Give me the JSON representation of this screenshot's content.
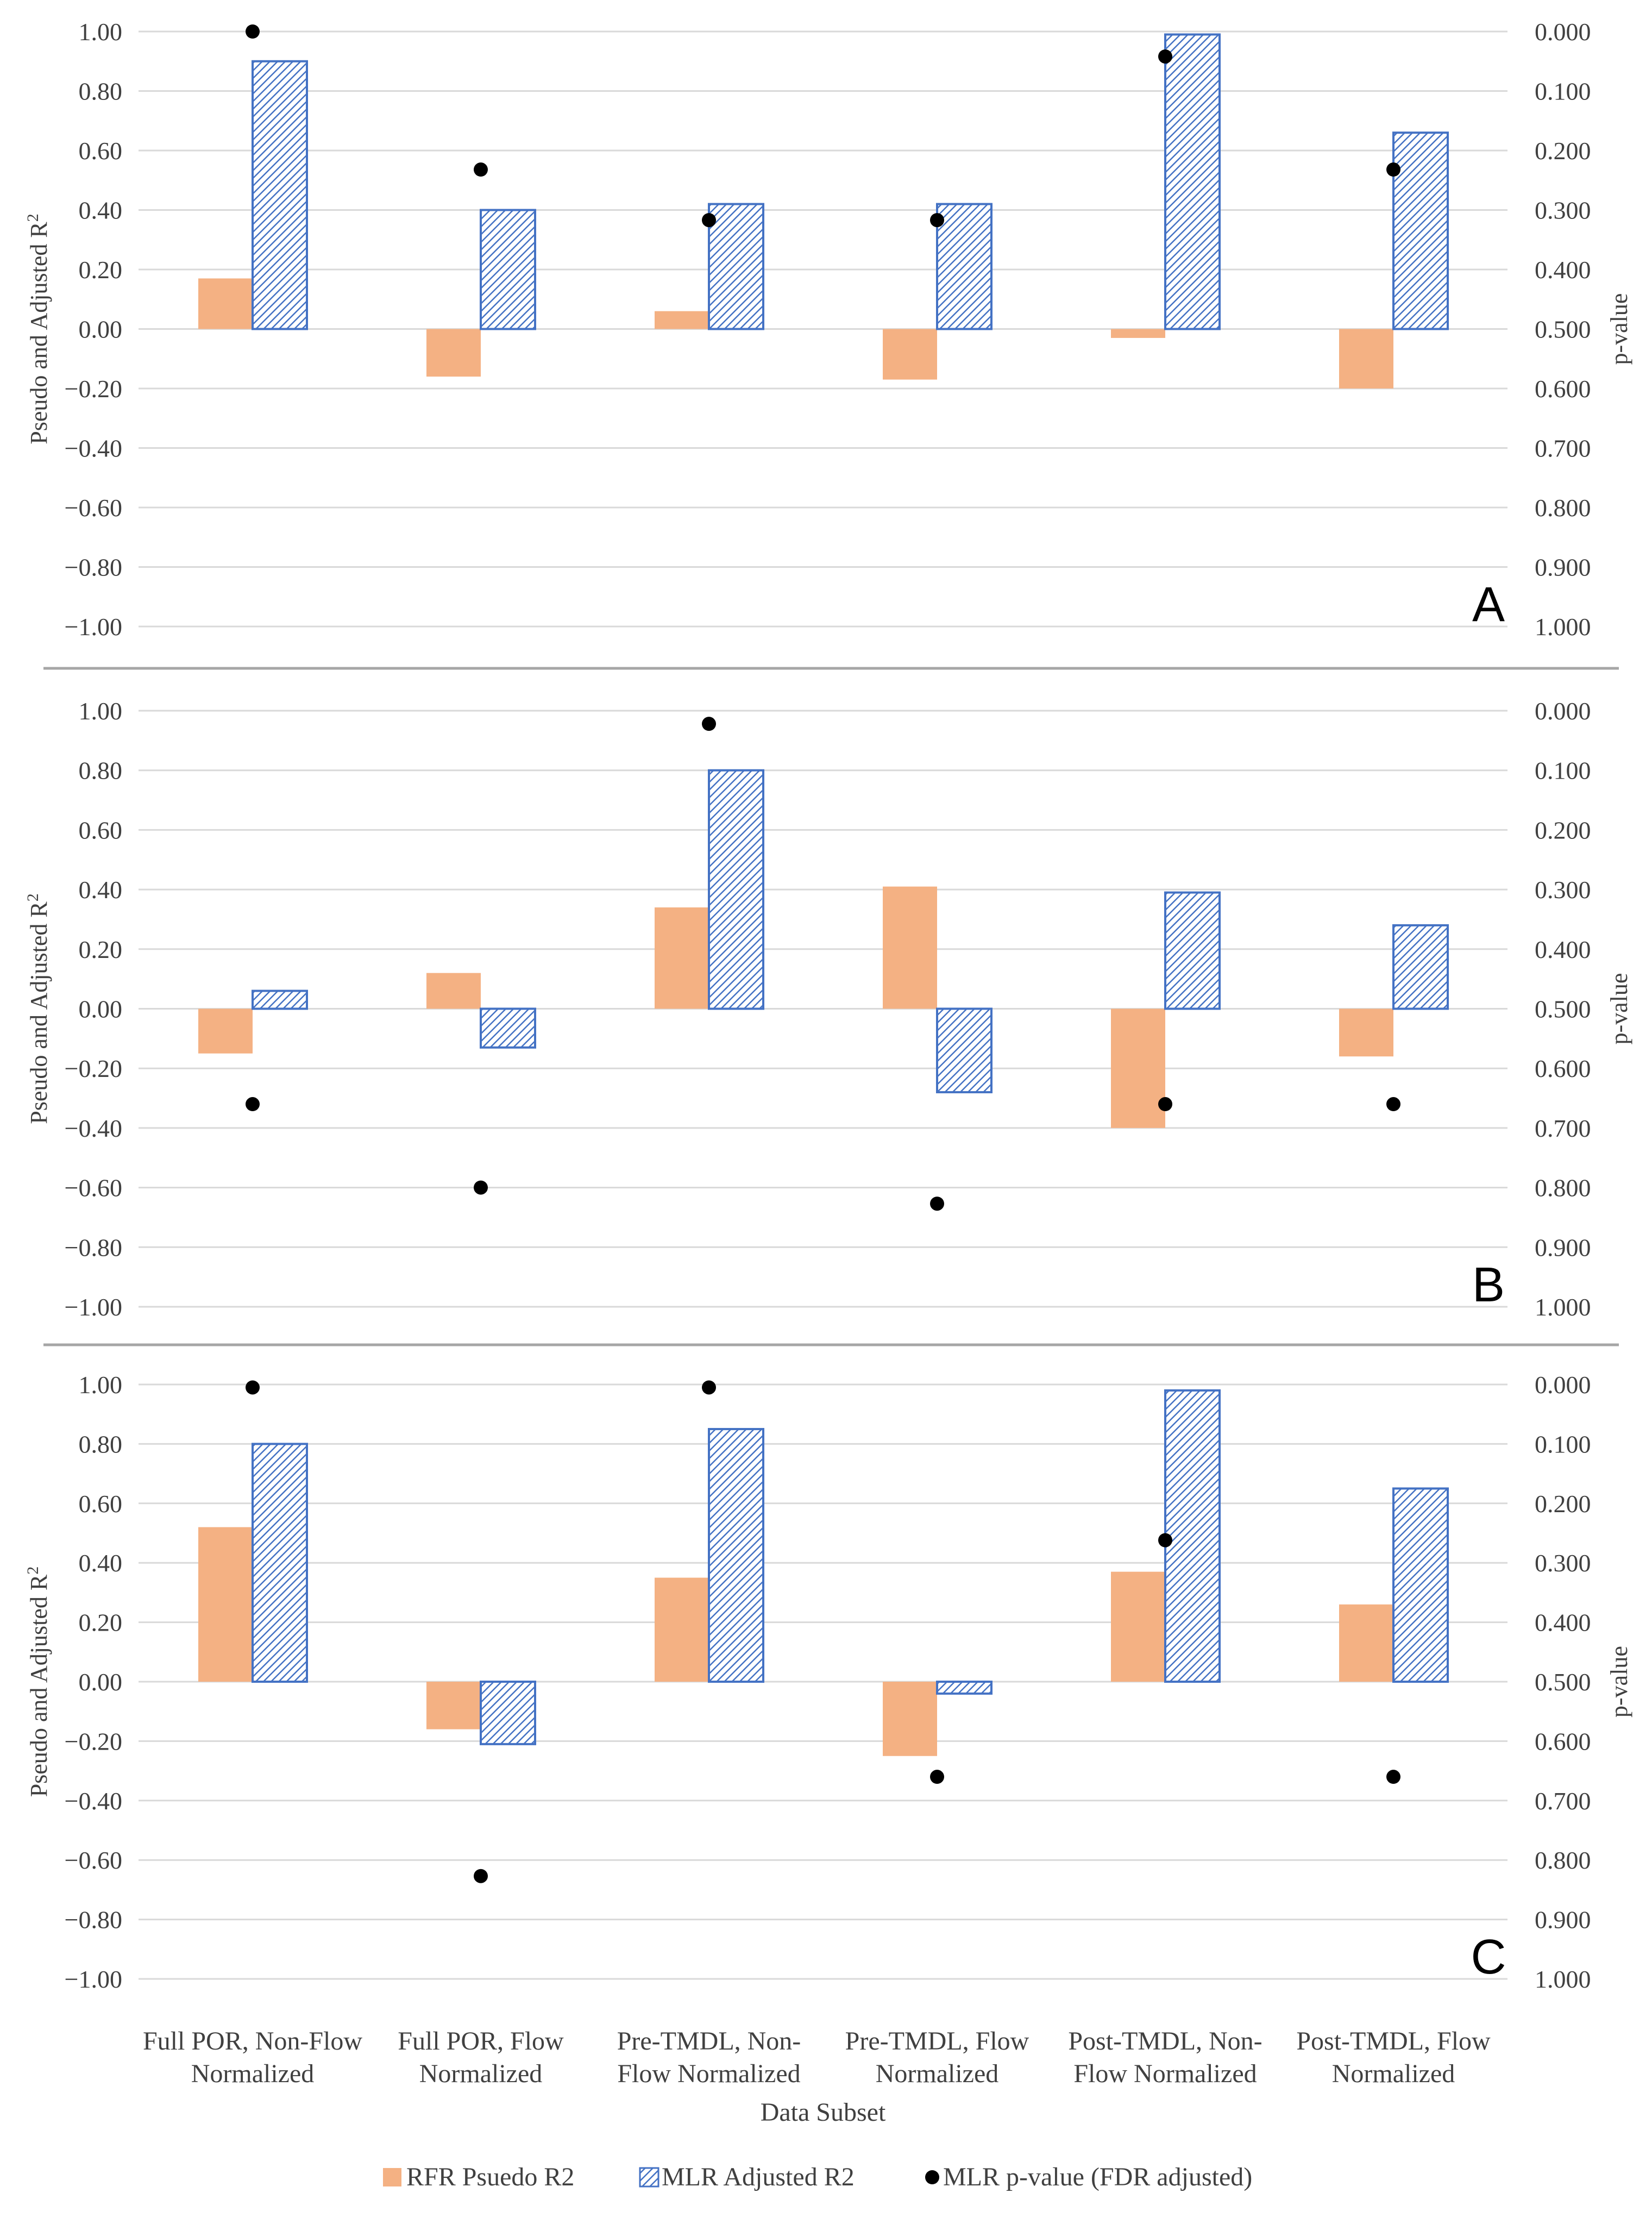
{
  "chart_data": [
    {
      "type": "bar",
      "panel": "A",
      "categories": [
        "Full POR, Non-Flow Normalized",
        "Full POR, Flow Normalized",
        "Pre-TMDL, Non-Flow Normalized",
        "Pre-TMDL, Flow Normalized",
        "Post-TMDL, Non-Flow Normalized",
        "Post-TMDL, Flow Normalized"
      ],
      "series": [
        {
          "name": "RFR Psuedo R2",
          "axis": "left",
          "values": [
            0.17,
            -0.16,
            0.06,
            -0.17,
            -0.03,
            -0.2
          ]
        },
        {
          "name": "MLR Adjusted R2",
          "axis": "left",
          "values": [
            0.9,
            0.4,
            0.42,
            0.42,
            0.99,
            0.66
          ]
        },
        {
          "name": "MLR p-value (FDR adjusted)",
          "axis": "right",
          "values": [
            0.0,
            0.232,
            0.317,
            0.317,
            0.042,
            0.232
          ]
        }
      ],
      "ylabel": "Pseudo and Adjusted R²",
      "ylim": [
        -1.0,
        1.0
      ],
      "y2label": "p-value",
      "y2lim": [
        0.0,
        1.0
      ],
      "y2_inverted": true
    },
    {
      "type": "bar",
      "panel": "B",
      "categories": [
        "Full POR, Non-Flow Normalized",
        "Full POR, Flow Normalized",
        "Pre-TMDL, Non-Flow Normalized",
        "Pre-TMDL, Flow Normalized",
        "Post-TMDL, Non-Flow Normalized",
        "Post-TMDL, Flow Normalized"
      ],
      "series": [
        {
          "name": "RFR Psuedo R2",
          "axis": "left",
          "values": [
            -0.15,
            0.12,
            0.34,
            0.41,
            -0.4,
            -0.16
          ]
        },
        {
          "name": "MLR Adjusted R2",
          "axis": "left",
          "values": [
            0.06,
            -0.13,
            0.8,
            -0.28,
            0.39,
            0.28
          ]
        },
        {
          "name": "MLR p-value (FDR adjusted)",
          "axis": "right",
          "values": [
            0.66,
            0.8,
            0.022,
            0.827,
            0.66,
            0.66
          ]
        }
      ],
      "ylabel": "Pseudo and Adjusted R²",
      "ylim": [
        -1.0,
        1.0
      ],
      "y2label": "p-value",
      "y2lim": [
        0.0,
        1.0
      ],
      "y2_inverted": true
    },
    {
      "type": "bar",
      "panel": "C",
      "categories": [
        "Full POR, Non-Flow Normalized",
        "Full POR, Flow Normalized",
        "Pre-TMDL, Non-Flow Normalized",
        "Pre-TMDL, Flow Normalized",
        "Post-TMDL, Non-Flow Normalized",
        "Post-TMDL, Flow Normalized"
      ],
      "series": [
        {
          "name": "RFR Psuedo R2",
          "axis": "left",
          "values": [
            0.52,
            -0.16,
            0.35,
            -0.25,
            0.37,
            0.26
          ]
        },
        {
          "name": "MLR Adjusted R2",
          "axis": "left",
          "values": [
            0.8,
            -0.21,
            0.85,
            -0.04,
            0.98,
            0.65
          ]
        },
        {
          "name": "MLR p-value (FDR adjusted)",
          "axis": "right",
          "values": [
            0.005,
            0.827,
            0.005,
            0.66,
            0.262,
            0.66
          ]
        }
      ],
      "ylabel": "Pseudo and Adjusted R²",
      "ylim": [
        -1.0,
        1.0
      ],
      "y2label": "p-value",
      "y2lim": [
        0.0,
        1.0
      ],
      "y2_inverted": true
    }
  ],
  "left_ticks": [
    "1.00",
    "0.80",
    "0.60",
    "0.40",
    "0.20",
    "0.00",
    "−0.20",
    "−0.40",
    "−0.60",
    "−0.80",
    "−1.00"
  ],
  "right_ticks": [
    "0.000",
    "0.100",
    "0.200",
    "0.300",
    "0.400",
    "0.500",
    "0.600",
    "0.700",
    "0.800",
    "0.900",
    "1.000"
  ],
  "category_lines": [
    [
      "Full POR, Non-Flow",
      "Normalized"
    ],
    [
      "Full POR, Flow",
      "Normalized"
    ],
    [
      "Pre-TMDL, Non-",
      "Flow Normalized"
    ],
    [
      "Pre-TMDL, Flow",
      "Normalized"
    ],
    [
      "Post-TMDL, Non-",
      "Flow Normalized"
    ],
    [
      "Post-TMDL, Flow",
      "Normalized"
    ]
  ],
  "xlabel": "Data Subset",
  "legend": [
    "RFR Psuedo R2",
    "MLR Adjusted R2",
    "MLR p-value (FDR adjusted)"
  ],
  "colors": {
    "rfr": "#f4b183",
    "mlr_stroke": "#4472c4",
    "mlr_hatch": "#4472c4",
    "pvalue": "#000000",
    "grid": "#d9d9d9",
    "separator": "#a6a6a6"
  }
}
